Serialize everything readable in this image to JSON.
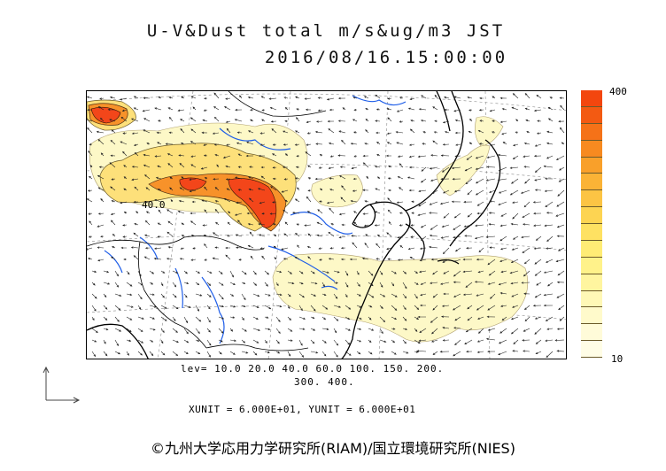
{
  "header": {
    "title_line1": "U-V&Dust total m/s&ug/m3 JST",
    "title_line2": "2016/08/16.15:00:00"
  },
  "map": {
    "contour_label": "40.0"
  },
  "legend": {
    "levels_line1": "lev= 10.0 20.0 40.0 60.0 100. 150. 200.",
    "levels_line2": "300. 400.",
    "units_line": "XUNIT = 6.000E+01, YUNIT = 6.000E+01",
    "colorbar_max": "400",
    "colorbar_min": "10",
    "colorbar_colors": [
      "#f3460e",
      "#f35a12",
      "#f57218",
      "#f78a20",
      "#f9a02a",
      "#fbb336",
      "#fcc444",
      "#fdd452",
      "#fee162",
      "#ffec75",
      "#fff28a",
      "#fff59f",
      "#fff8b6",
      "#fffacb",
      "#fffbd9",
      "#fffde6"
    ]
  },
  "footer": {
    "credit": "©九州大学応用力学研究所(RIAM)/国立環境研究所(NIES)"
  },
  "colors": {
    "dust_high": "#f4481a",
    "dust_low": "#fdf8c7",
    "river": "#1f5ee8",
    "coast": "#000000"
  }
}
